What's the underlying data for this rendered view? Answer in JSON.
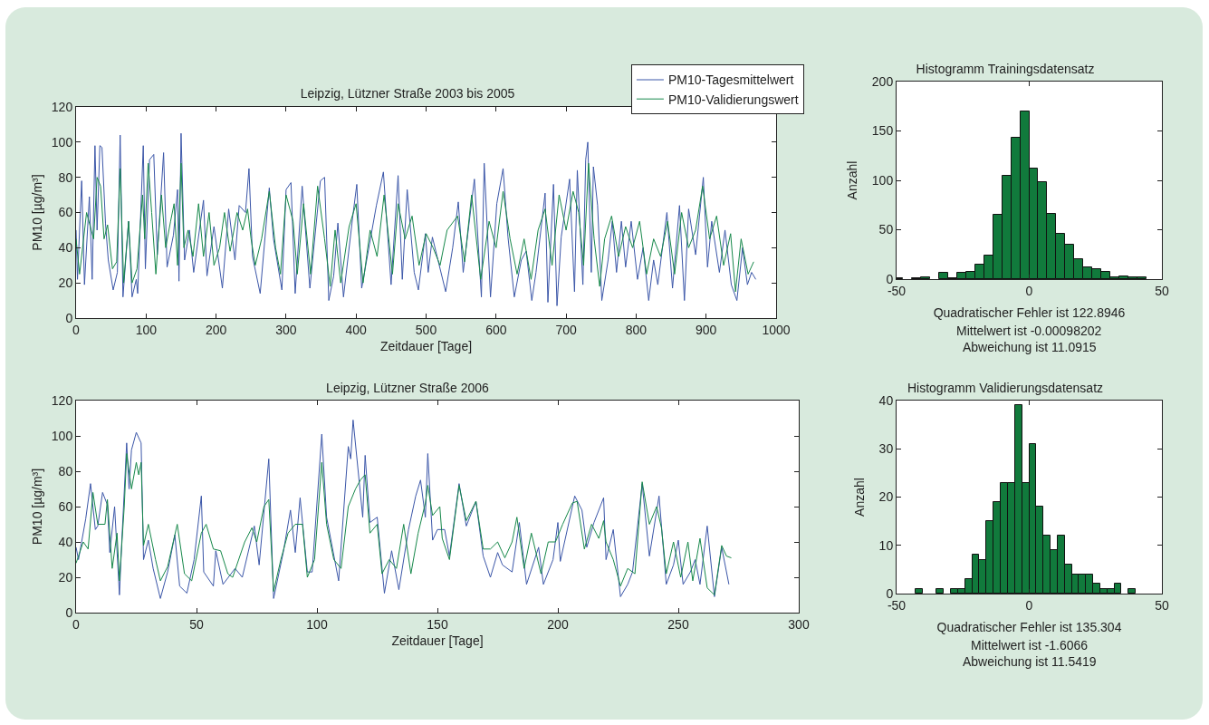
{
  "chart_data": [
    {
      "type": "line",
      "title": "Leipzig, Lützner Straße 2003 bis 2005",
      "xlabel": "Zeitdauer [Tage]",
      "ylabel": "PM10 [µg/m³]",
      "xlim": [
        0,
        1000
      ],
      "ylim": [
        0,
        120
      ],
      "xticks": [
        0,
        100,
        200,
        300,
        400,
        500,
        600,
        700,
        800,
        900,
        1000
      ],
      "yticks": [
        0,
        20,
        40,
        60,
        80,
        100,
        120
      ],
      "legend": "top right",
      "series": [
        {
          "name": "PM10-Tagesmittelwert",
          "color": "#3b56a8",
          "x": [
            0,
            2,
            8,
            12,
            19,
            23,
            27,
            30,
            34,
            37,
            42,
            46,
            53,
            59,
            63,
            67,
            75,
            80,
            86,
            88,
            96,
            99,
            105,
            111,
            116,
            125,
            130,
            139,
            145,
            147,
            150,
            155,
            162,
            168,
            182,
            187,
            197,
            209,
            218,
            227,
            233,
            242,
            247,
            252,
            263,
            276,
            282,
            294,
            300,
            307,
            313,
            323,
            334,
            349,
            355,
            361,
            368,
            374,
            382,
            395,
            401,
            408,
            429,
            439,
            450,
            460,
            466,
            473,
            483,
            489,
            499,
            503,
            509,
            528,
            538,
            546,
            553,
            569,
            579,
            583,
            592,
            601,
            610,
            617,
            626,
            636,
            643,
            651,
            657,
            670,
            674,
            682,
            687,
            693,
            705,
            712,
            716,
            724,
            728,
            731,
            736,
            739,
            745,
            751,
            760,
            766,
            772,
            779,
            785,
            793,
            802,
            810,
            818,
            825,
            831,
            844,
            852,
            862,
            869,
            875,
            885,
            896,
            902,
            908,
            919,
            927,
            936,
            944,
            952,
            959,
            965,
            971
          ],
          "values": [
            50,
            22,
            78,
            19,
            69,
            22,
            98,
            50,
            98,
            97,
            54,
            33,
            16,
            26,
            104,
            12,
            55,
            12,
            22,
            14,
            98,
            28,
            90,
            93,
            36,
            94,
            29,
            47,
            73,
            21,
            105,
            33,
            50,
            26,
            67,
            24,
            52,
            17,
            62,
            33,
            64,
            60,
            85,
            35,
            14,
            74,
            45,
            16,
            73,
            77,
            14,
            75,
            17,
            78,
            80,
            10,
            24,
            54,
            12,
            57,
            76,
            17,
            64,
            83,
            19,
            81,
            22,
            73,
            26,
            16,
            48,
            26,
            46,
            15,
            40,
            66,
            26,
            79,
            12,
            88,
            12,
            65,
            85,
            46,
            12,
            33,
            38,
            10,
            26,
            71,
            9,
            76,
            7,
            46,
            79,
            15,
            84,
            19,
            90,
            100,
            26,
            86,
            64,
            10,
            33,
            55,
            26,
            55,
            29,
            55,
            22,
            40,
            10,
            33,
            19,
            60,
            17,
            64,
            10,
            62,
            36,
            80,
            29,
            55,
            26,
            50,
            19,
            10,
            40,
            19,
            26,
            22
          ]
        },
        {
          "name": "PM10-Validierungswert",
          "color": "#16884a",
          "x": [
            0,
            5,
            15,
            25,
            30,
            35,
            40,
            45,
            52,
            58,
            63,
            68,
            75,
            80,
            87,
            95,
            98,
            103,
            108,
            114,
            122,
            128,
            135,
            140,
            145,
            150,
            154,
            160,
            167,
            175,
            182,
            190,
            197,
            205,
            212,
            220,
            230,
            238,
            245,
            250,
            256,
            265,
            276,
            285,
            292,
            300,
            310,
            316,
            325,
            335,
            345,
            355,
            363,
            370,
            378,
            390,
            400,
            410,
            420,
            430,
            440,
            452,
            460,
            470,
            480,
            490,
            500,
            510,
            520,
            530,
            545,
            555,
            565,
            578,
            590,
            600,
            610,
            620,
            630,
            640,
            650,
            660,
            670,
            680,
            690,
            700,
            710,
            718,
            725,
            732,
            740,
            748,
            755,
            765,
            775,
            785,
            795,
            805,
            815,
            825,
            835,
            845,
            855,
            865,
            875,
            885,
            895,
            905,
            915,
            925,
            935,
            942,
            950,
            960,
            968
          ],
          "values": [
            45,
            25,
            60,
            45,
            80,
            75,
            45,
            53,
            28,
            32,
            85,
            20,
            55,
            20,
            28,
            70,
            45,
            88,
            60,
            25,
            70,
            40,
            55,
            65,
            30,
            88,
            40,
            50,
            35,
            65,
            35,
            60,
            30,
            40,
            60,
            38,
            60,
            50,
            62,
            45,
            30,
            45,
            72,
            40,
            25,
            70,
            55,
            25,
            65,
            25,
            75,
            45,
            18,
            50,
            20,
            52,
            65,
            20,
            50,
            35,
            70,
            25,
            65,
            45,
            58,
            30,
            48,
            40,
            30,
            50,
            58,
            32,
            70,
            22,
            55,
            40,
            72,
            45,
            25,
            45,
            22,
            50,
            62,
            30,
            70,
            50,
            72,
            60,
            30,
            88,
            45,
            18,
            45,
            58,
            35,
            52,
            40,
            55,
            25,
            45,
            35,
            55,
            25,
            60,
            40,
            50,
            75,
            45,
            58,
            30,
            48,
            15,
            45,
            25,
            32
          ]
        }
      ]
    },
    {
      "type": "histogram",
      "title": "Histogramm Trainingsdatensatz",
      "xlabel": "Quadratischer Fehler ist 122.8946",
      "ylabel": "Anzahl",
      "annotations": [
        "Mittelwert ist -0.00098202",
        "Abweichung ist 11.0915"
      ],
      "color": "#117a3c",
      "xlim": [
        -50,
        50
      ],
      "ylim": [
        0,
        200
      ],
      "xticks": [
        -50,
        0,
        50
      ],
      "yticks": [
        0,
        50,
        100,
        150,
        200
      ],
      "bins": [
        -50,
        -47.6,
        -44.2,
        -40.8,
        -37.4,
        -34,
        -30.6,
        -27.2,
        -23.8,
        -20.4,
        -17,
        -13.6,
        -10.2,
        -6.8,
        -3.4,
        0,
        3.4,
        6.8,
        10.2,
        13.6,
        17,
        20.4,
        23.8,
        27.2,
        30.6,
        34,
        37.4,
        40.8,
        44.2
      ],
      "values": [
        1,
        0,
        1,
        2,
        0,
        6,
        1,
        6,
        7,
        15,
        24,
        65,
        105,
        143,
        170,
        112,
        98,
        66,
        46,
        35,
        20,
        12,
        10,
        7,
        2,
        3,
        2,
        2
      ]
    },
    {
      "type": "line",
      "title": "Leipzig, Lützner Straße 2006",
      "xlabel": "Zeitdauer [Tage]",
      "ylabel": "PM10 [µg/m³]",
      "xlim": [
        0,
        300
      ],
      "ylim": [
        0,
        120
      ],
      "xticks": [
        0,
        50,
        100,
        150,
        200,
        250,
        300
      ],
      "yticks": [
        0,
        20,
        40,
        60,
        80,
        100,
        120
      ],
      "series": [
        {
          "color": "#3b56a8",
          "x": [
            0,
            1,
            4,
            6,
            8,
            9,
            11,
            13,
            14,
            16,
            18,
            19,
            21,
            22,
            23,
            25,
            27,
            28,
            30,
            32,
            35,
            38,
            41,
            43,
            46,
            49,
            52,
            53,
            57,
            58,
            61,
            66,
            69,
            74,
            76,
            80,
            82,
            86,
            89,
            91,
            93,
            96,
            98,
            102,
            104,
            109,
            113,
            114,
            115,
            119,
            120,
            122,
            125,
            128,
            131,
            134,
            138,
            141,
            143,
            145,
            146,
            148,
            150,
            153,
            155,
            159,
            162,
            166,
            169,
            172,
            175,
            177,
            181,
            184,
            187,
            192,
            194,
            198,
            200,
            201,
            207,
            210,
            212,
            215,
            219,
            220,
            223,
            226,
            229,
            231,
            235,
            238,
            242,
            245,
            248,
            250,
            252,
            255,
            257,
            259,
            262,
            265,
            268,
            271
          ],
          "values": [
            37,
            30,
            53,
            73,
            47,
            49,
            68,
            61,
            34,
            60,
            10,
            41,
            96,
            70,
            92,
            102,
            96,
            30,
            41,
            25,
            8,
            23,
            44,
            15,
            11,
            30,
            66,
            23,
            15,
            35,
            16,
            25,
            20,
            49,
            27,
            87,
            8,
            34,
            58,
            34,
            65,
            23,
            23,
            101,
            54,
            18,
            94,
            87,
            109,
            54,
            89,
            51,
            54,
            11,
            35,
            13,
            47,
            66,
            75,
            54,
            90,
            41,
            47,
            47,
            32,
            73,
            49,
            63,
            32,
            20,
            34,
            27,
            23,
            51,
            16,
            37,
            16,
            30,
            51,
            29,
            66,
            58,
            37,
            51,
            65,
            30,
            47,
            9,
            16,
            23,
            73,
            32,
            66,
            16,
            27,
            41,
            16,
            23,
            30,
            16,
            49,
            9,
            37,
            16
          ]
        },
        {
          "color": "#16884a",
          "x": [
            0,
            3,
            5,
            7,
            9,
            12,
            13,
            15,
            17,
            18,
            20,
            21,
            23,
            25,
            26,
            27,
            28,
            30,
            33,
            35,
            38,
            42,
            45,
            48,
            52,
            54,
            57,
            60,
            63,
            65,
            70,
            73,
            75,
            78,
            80,
            82,
            85,
            88,
            91,
            94,
            96,
            99,
            102,
            104,
            107,
            110,
            113,
            116,
            118,
            120,
            122,
            125,
            127,
            130,
            133,
            136,
            139,
            142,
            145,
            146,
            148,
            151,
            152,
            155,
            159,
            162,
            166,
            169,
            172,
            175,
            178,
            181,
            183,
            186,
            189,
            193,
            196,
            199,
            202,
            206,
            208,
            211,
            214,
            217,
            219,
            220,
            223,
            226,
            229,
            232,
            235,
            238,
            241,
            243,
            245,
            248,
            251,
            254,
            256,
            259,
            262,
            265,
            268,
            270,
            272
          ],
          "values": [
            28,
            40,
            36,
            68,
            50,
            50,
            64,
            25,
            45,
            18,
            60,
            90,
            70,
            85,
            78,
            85,
            38,
            50,
            30,
            18,
            26,
            50,
            22,
            18,
            45,
            50,
            36,
            35,
            22,
            20,
            40,
            48,
            40,
            60,
            64,
            12,
            30,
            45,
            50,
            50,
            20,
            30,
            85,
            50,
            30,
            25,
            60,
            70,
            75,
            78,
            45,
            50,
            22,
            30,
            25,
            50,
            22,
            45,
            62,
            72,
            55,
            60,
            42,
            30,
            72,
            52,
            63,
            36,
            36,
            40,
            31,
            40,
            54,
            25,
            45,
            22,
            40,
            40,
            50,
            62,
            63,
            36,
            50,
            42,
            52,
            40,
            30,
            15,
            25,
            22,
            74,
            50,
            60,
            48,
            22,
            40,
            20,
            40,
            18,
            42,
            14,
            10,
            38,
            32,
            31
          ]
        }
      ]
    },
    {
      "type": "histogram",
      "title": "Histogramm Validierungsdatensatz",
      "xlabel": "Quadratischer Fehler ist 135.304",
      "ylabel": "Anzahl",
      "annotations": [
        "Mittelwert ist -1.6066",
        "Abweichung ist 11.5419"
      ],
      "color": "#117a3c",
      "xlim": [
        -50,
        50
      ],
      "ylim": [
        0,
        40
      ],
      "xticks": [
        -50,
        0,
        50
      ],
      "yticks": [
        0,
        10,
        20,
        30,
        40
      ],
      "bins": [
        -42.9,
        -40.2,
        -37.5,
        -34.9,
        -32.2,
        -29.5,
        -26.8,
        -24.1,
        -21.5,
        -18.8,
        -16.1,
        -13.4,
        -10.7,
        -8.1,
        -5.4,
        -2.7,
        0,
        2.7,
        5.3,
        8,
        10.7,
        13.4,
        16.1,
        18.7,
        21.4,
        24.1,
        26.8,
        29.5,
        32.1,
        34.8,
        37.5,
        40.2
      ],
      "values": [
        1,
        0,
        0,
        1,
        0,
        1,
        1,
        3,
        8,
        7,
        15,
        19,
        23,
        23,
        39,
        23,
        31,
        18,
        12,
        9,
        12,
        6,
        4,
        4,
        4,
        2,
        1,
        1,
        2,
        0,
        1
      ]
    }
  ]
}
